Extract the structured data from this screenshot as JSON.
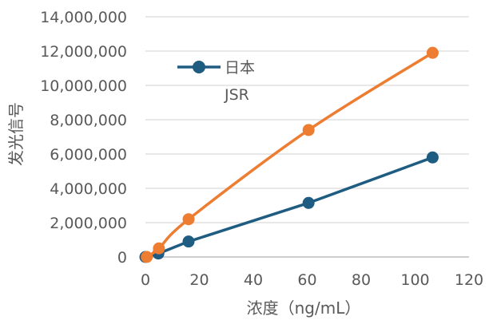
{
  "chart_data": {
    "type": "line",
    "xlabel": "浓度（ng/mL）",
    "ylabel": "发光信号",
    "xlim": [
      0,
      120
    ],
    "ylim": [
      0,
      14000000
    ],
    "x_ticks": [
      0,
      20,
      40,
      60,
      80,
      100,
      120
    ],
    "y_ticks": [
      0,
      2000000,
      4000000,
      6000000,
      8000000,
      10000000,
      12000000,
      14000000
    ],
    "x_tick_labels": [
      "0",
      "20",
      "40",
      "60",
      "80",
      "100",
      "120"
    ],
    "y_tick_labels": [
      "0",
      "2,000,000",
      "4,000,000",
      "6,000,000",
      "8,000,000",
      "10,000,000",
      "12,000,000",
      "14,000,000"
    ],
    "grid": "horizontal",
    "legend_position": "top-left inside",
    "series": [
      {
        "name": "日本",
        "color": "#1f5c82",
        "marker": "circle",
        "smooth": false,
        "x": [
          0,
          4.8,
          16,
          60.5,
          106.5
        ],
        "y": [
          0,
          200000,
          900000,
          3150000,
          5800000
        ]
      },
      {
        "name": "JSR",
        "color": "#ed7d31",
        "marker": "circle",
        "smooth": true,
        "x": [
          0.5,
          5,
          16,
          60.5,
          106.5
        ],
        "y": [
          0,
          500000,
          2200000,
          7400000,
          11900000
        ]
      }
    ]
  }
}
